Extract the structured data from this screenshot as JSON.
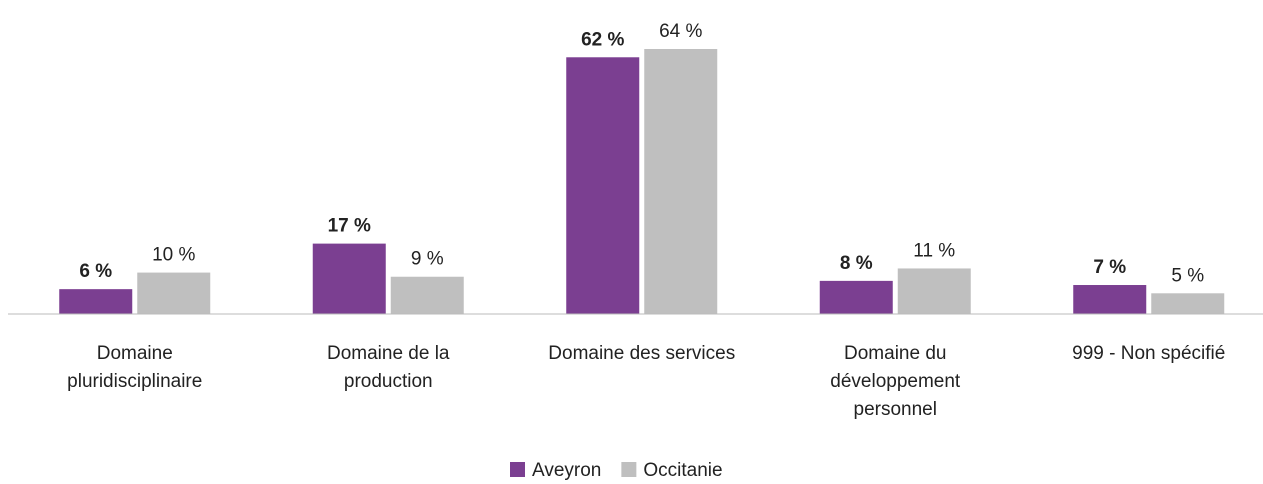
{
  "chart_data": {
    "type": "bar",
    "categories": [
      "Domaine pluridisciplinaire",
      "Domaine de la production",
      "Domaine des services",
      "Domaine du développement personnel",
      "999 - Non spécifié"
    ],
    "series": [
      {
        "name": "Aveyron",
        "color": "#7b3f91",
        "values": [
          6,
          17,
          62,
          8,
          7
        ],
        "value_labels": [
          "6 %",
          "17 %",
          "62 %",
          "8 %",
          "7 %"
        ]
      },
      {
        "name": "Occitanie",
        "color": "#bfbfbf",
        "values": [
          10,
          9,
          64,
          11,
          5
        ],
        "value_labels": [
          "10 %",
          "9 %",
          "64 %",
          "11 %",
          "5 %"
        ]
      }
    ],
    "legend": "bottom"
  }
}
